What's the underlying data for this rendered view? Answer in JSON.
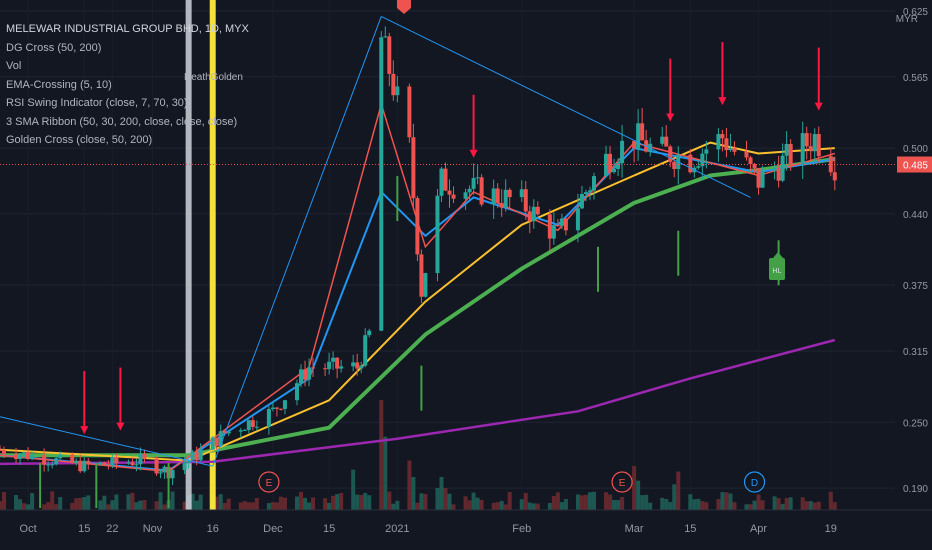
{
  "header": {
    "symbol_line": "MELEWAR INDUSTRIAL GROUP BHD, 1D, MYX",
    "currency": "MYR"
  },
  "legend": [
    "DG Cross (50, 200)",
    "Vol",
    "EMA-Crossing (5, 10)",
    "RSI Swing Indicator (close, 7, 70, 30)",
    "3 SMA Ribbon (50, 30, 200, close, close, close)",
    "Golden Cross (close, 50, 200)"
  ],
  "annotations": {
    "death_golden": "DeathGolden",
    "event_e1": "E",
    "event_e2": "E",
    "event_d": "D",
    "hl_label": "HL"
  },
  "colors": {
    "background": "#131722",
    "up": "#26a69a",
    "down": "#ef5350",
    "ema_fast": "#ef5350",
    "ema_slow": "#2196f3",
    "sma30": "#fbc02d",
    "sma50": "#4caf50",
    "sma200": "#9c27b0",
    "trendline": "#2196f3",
    "death_line": "#d1d4dc",
    "golden_line": "#ffeb3b",
    "last_price": "#ef5350",
    "arrow_down": "#ff1744",
    "arrow_up": "#43a047"
  },
  "chart_data": {
    "type": "candlestick",
    "title": "MELEWAR INDUSTRIAL GROUP BHD, 1D, MYX",
    "currency": "MYR",
    "x_ticks": [
      {
        "date": "2020-10-01",
        "label": "Oct"
      },
      {
        "date": "2020-10-15",
        "label": "15"
      },
      {
        "date": "2020-10-22",
        "label": "22"
      },
      {
        "date": "2020-11-01",
        "label": "Nov"
      },
      {
        "date": "2020-11-16",
        "label": "16"
      },
      {
        "date": "2020-12-01",
        "label": "Dec"
      },
      {
        "date": "2020-12-15",
        "label": "15"
      },
      {
        "date": "2021-01-01",
        "label": "2021"
      },
      {
        "date": "2021-02-01",
        "label": "Feb"
      },
      {
        "date": "2021-03-01",
        "label": "Mar"
      },
      {
        "date": "2021-03-15",
        "label": "15"
      },
      {
        "date": "2021-04-01",
        "label": "Apr"
      },
      {
        "date": "2021-04-19",
        "label": "19"
      }
    ],
    "y_ticks": [
      0.19,
      0.25,
      0.315,
      0.375,
      0.44,
      0.5,
      0.565,
      0.625
    ],
    "y_tick_labels": [
      "0.190",
      "0.250",
      "0.315",
      "0.375",
      "0.440",
      "0.500",
      "0.565",
      "0.625"
    ],
    "y_range": [
      0.17,
      0.635
    ],
    "x_range": [
      "2020-09-24",
      "2021-05-05"
    ],
    "last_price": 0.485,
    "last_price_label": "0.485",
    "price_waypoints": [
      {
        "date": "2020-09-24",
        "close": 0.225
      },
      {
        "date": "2020-10-15",
        "close": 0.21
      },
      {
        "date": "2020-10-29",
        "close": 0.215
      },
      {
        "date": "2020-11-05",
        "close": 0.205
      },
      {
        "date": "2020-11-12",
        "close": 0.22
      },
      {
        "date": "2020-11-19",
        "close": 0.24
      },
      {
        "date": "2020-12-01",
        "close": 0.26
      },
      {
        "date": "2020-12-10",
        "close": 0.3
      },
      {
        "date": "2020-12-22",
        "close": 0.3
      },
      {
        "date": "2020-12-26",
        "close": 0.34
      },
      {
        "date": "2020-12-28",
        "close": 0.6
      },
      {
        "date": "2021-01-04",
        "close": 0.5
      },
      {
        "date": "2021-01-07",
        "close": 0.37
      },
      {
        "date": "2021-01-12",
        "close": 0.47
      },
      {
        "date": "2021-01-22",
        "close": 0.46
      },
      {
        "date": "2021-02-01",
        "close": 0.45
      },
      {
        "date": "2021-02-10",
        "close": 0.42
      },
      {
        "date": "2021-02-22",
        "close": 0.49
      },
      {
        "date": "2021-03-01",
        "close": 0.51
      },
      {
        "date": "2021-03-05",
        "close": 0.5
      },
      {
        "date": "2021-03-15",
        "close": 0.49
      },
      {
        "date": "2021-03-23",
        "close": 0.51
      },
      {
        "date": "2021-04-01",
        "close": 0.47
      },
      {
        "date": "2021-04-08",
        "close": 0.49
      },
      {
        "date": "2021-04-15",
        "close": 0.51
      },
      {
        "date": "2021-04-20",
        "close": 0.485
      }
    ],
    "ema_fast_points": [
      {
        "date": "2020-09-24",
        "value": 0.22
      },
      {
        "date": "2020-11-05",
        "value": 0.205
      },
      {
        "date": "2020-12-10",
        "value": 0.3
      },
      {
        "date": "2020-12-28",
        "value": 0.54
      },
      {
        "date": "2021-01-08",
        "value": 0.41
      },
      {
        "date": "2021-01-20",
        "value": 0.46
      },
      {
        "date": "2021-02-10",
        "value": 0.425
      },
      {
        "date": "2021-03-01",
        "value": 0.505
      },
      {
        "date": "2021-04-01",
        "value": 0.475
      },
      {
        "date": "2021-04-20",
        "value": 0.495
      }
    ],
    "ema_slow_points": [
      {
        "date": "2020-09-24",
        "value": 0.22
      },
      {
        "date": "2020-11-05",
        "value": 0.206
      },
      {
        "date": "2020-12-10",
        "value": 0.29
      },
      {
        "date": "2020-12-28",
        "value": 0.46
      },
      {
        "date": "2021-01-08",
        "value": 0.42
      },
      {
        "date": "2021-01-20",
        "value": 0.455
      },
      {
        "date": "2021-02-10",
        "value": 0.43
      },
      {
        "date": "2021-03-01",
        "value": 0.5
      },
      {
        "date": "2021-04-01",
        "value": 0.478
      },
      {
        "date": "2021-04-20",
        "value": 0.49
      }
    ],
    "sma30_points": [
      {
        "date": "2020-09-24",
        "value": 0.225
      },
      {
        "date": "2020-11-10",
        "value": 0.215
      },
      {
        "date": "2020-12-15",
        "value": 0.27
      },
      {
        "date": "2021-01-08",
        "value": 0.36
      },
      {
        "date": "2021-02-01",
        "value": 0.43
      },
      {
        "date": "2021-03-01",
        "value": 0.475
      },
      {
        "date": "2021-03-20",
        "value": 0.505
      },
      {
        "date": "2021-04-01",
        "value": 0.495
      },
      {
        "date": "2021-04-20",
        "value": 0.5
      }
    ],
    "sma50_points": [
      {
        "date": "2020-09-24",
        "value": 0.22
      },
      {
        "date": "2020-11-10",
        "value": 0.22
      },
      {
        "date": "2020-12-15",
        "value": 0.245
      },
      {
        "date": "2021-01-08",
        "value": 0.33
      },
      {
        "date": "2021-02-01",
        "value": 0.39
      },
      {
        "date": "2021-03-01",
        "value": 0.45
      },
      {
        "date": "2021-03-20",
        "value": 0.475
      },
      {
        "date": "2021-04-01",
        "value": 0.48
      },
      {
        "date": "2021-04-20",
        "value": 0.49
      }
    ],
    "sma200_points": [
      {
        "date": "2020-09-24",
        "value": 0.212
      },
      {
        "date": "2020-11-16",
        "value": 0.214
      },
      {
        "date": "2021-01-01",
        "value": 0.235
      },
      {
        "date": "2021-02-15",
        "value": 0.26
      },
      {
        "date": "2021-03-15",
        "value": 0.29
      },
      {
        "date": "2021-04-20",
        "value": 0.325
      }
    ],
    "trendlines": [
      {
        "from": {
          "date": "2020-09-24",
          "value": 0.255
        },
        "to": {
          "date": "2020-11-16",
          "value": 0.21
        }
      },
      {
        "from": {
          "date": "2020-11-16",
          "value": 0.21
        },
        "to": {
          "date": "2020-12-28",
          "value": 0.62
        }
      },
      {
        "from": {
          "date": "2020-12-28",
          "value": 0.62
        },
        "to": {
          "date": "2021-03-30",
          "value": 0.455
        }
      }
    ],
    "vertical_lines": [
      {
        "date": "2020-11-10",
        "name": "death"
      },
      {
        "date": "2020-11-16",
        "name": "golden"
      }
    ],
    "down_arrows": [
      "2020-10-15",
      "2020-10-24",
      "2021-01-20",
      "2021-03-10",
      "2021-03-23",
      "2021-04-16"
    ],
    "up_arrows": [
      "2020-10-04",
      "2020-10-18",
      "2020-11-05",
      "2021-01-01",
      "2021-01-07",
      "2021-02-20",
      "2021-03-12",
      "2021-04-06"
    ],
    "volume": [
      {
        "date": "2020-12-20",
        "value": 0.55,
        "up": true
      },
      {
        "date": "2020-12-28",
        "value": 1.0,
        "up": true
      },
      {
        "date": "2021-01-04",
        "value": 0.45,
        "up": false
      },
      {
        "date": "2021-01-12",
        "value": 0.3,
        "up": true
      },
      {
        "date": "2021-03-01",
        "value": 0.4,
        "up": false
      },
      {
        "date": "2021-03-12",
        "value": 0.35,
        "up": true
      }
    ],
    "events": [
      {
        "date": "2020-11-30",
        "label": "E"
      },
      {
        "date": "2021-02-26",
        "label": "E"
      },
      {
        "date": "2021-03-31",
        "label": "D"
      }
    ]
  }
}
